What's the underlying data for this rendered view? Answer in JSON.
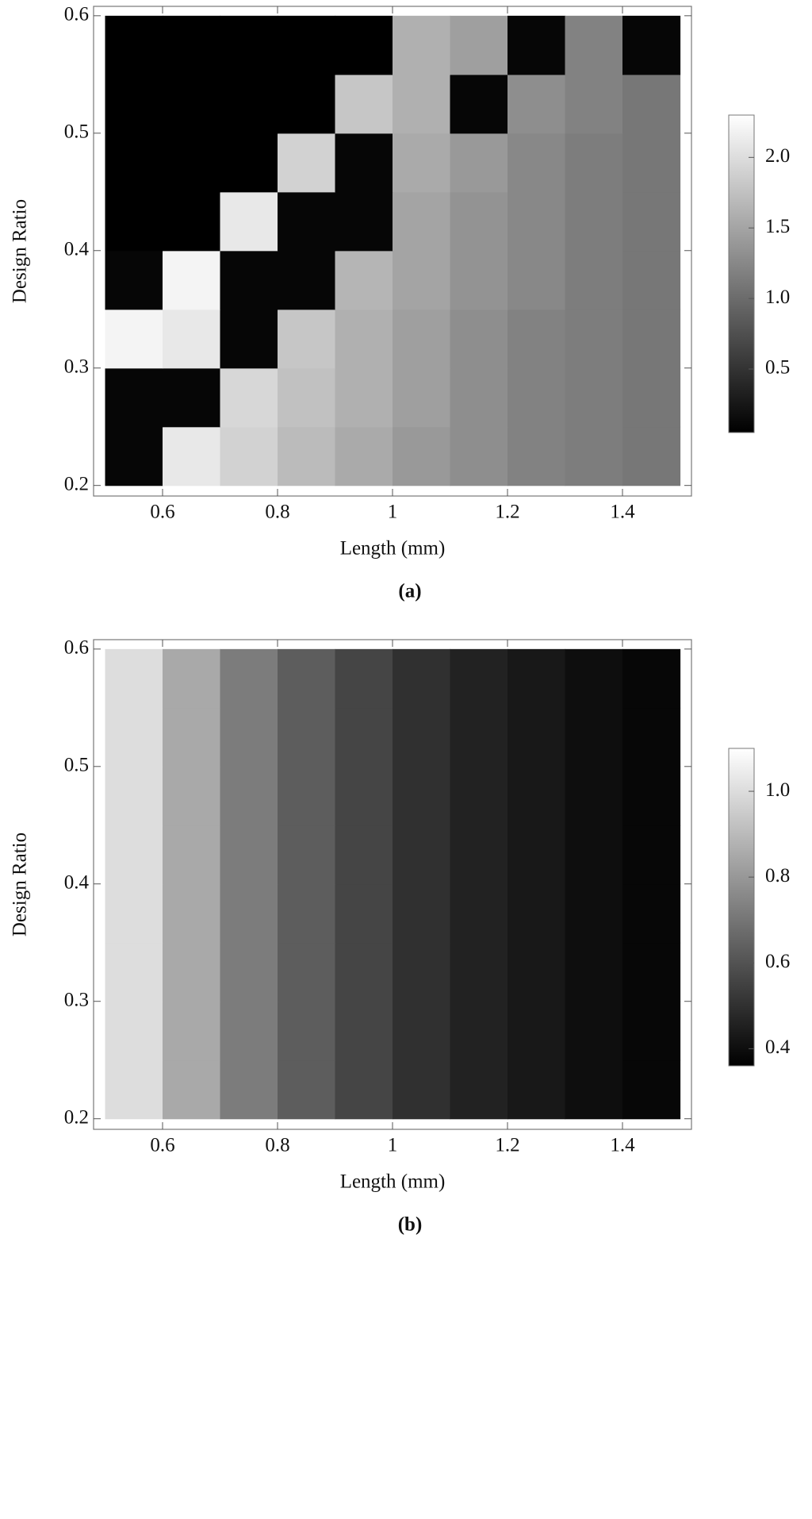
{
  "chart_data": [
    {
      "type": "heatmap",
      "caption": "(a)",
      "x_label": "Length (mm)",
      "y_label": "Design Ratio",
      "x": [
        0.55,
        0.65,
        0.75,
        0.85,
        0.95,
        1.05,
        1.15,
        1.25,
        1.35,
        1.45
      ],
      "y": [
        0.225,
        0.275,
        0.325,
        0.375,
        0.425,
        0.475,
        0.525,
        0.575
      ],
      "z": [
        [
          0.1,
          2.1,
          1.9,
          1.7,
          1.55,
          1.4,
          1.3,
          1.2,
          1.15,
          1.1
        ],
        [
          0.1,
          0.1,
          1.95,
          1.75,
          1.6,
          1.45,
          1.3,
          1.2,
          1.15,
          1.1
        ],
        [
          2.2,
          2.1,
          0.1,
          1.8,
          1.6,
          1.45,
          1.3,
          1.2,
          1.15,
          1.1
        ],
        [
          0.1,
          2.2,
          0.1,
          0.1,
          1.65,
          1.5,
          1.35,
          1.25,
          1.15,
          1.1
        ],
        [
          0.05,
          0.05,
          2.1,
          0.1,
          0.1,
          1.5,
          1.35,
          1.25,
          1.15,
          1.1
        ],
        [
          0.05,
          0.05,
          0.05,
          1.9,
          0.1,
          1.55,
          1.4,
          1.25,
          1.15,
          1.1
        ],
        [
          0.05,
          0.05,
          0.05,
          0.05,
          1.8,
          1.6,
          0.1,
          1.3,
          1.2,
          1.1
        ],
        [
          0.05,
          0.05,
          0.05,
          0.05,
          0.05,
          1.6,
          1.45,
          0.1,
          1.2,
          0.1
        ]
      ],
      "xlim": [
        0.48,
        1.52
      ],
      "ylim": [
        0.191,
        0.608
      ],
      "xticks": [
        0.6,
        0.8,
        1,
        1.2,
        1.4
      ],
      "yticks": [
        0.2,
        0.3,
        0.4,
        0.5,
        0.6
      ],
      "zlim": [
        0.05,
        2.3
      ],
      "zticks": [
        0.5,
        {
          "value": 1,
          "label": "1.0"
        },
        1.5,
        {
          "value": 2,
          "label": "2.0"
        }
      ],
      "colormap": [
        "#000000",
        "#ffffff"
      ]
    },
    {
      "type": "heatmap",
      "caption": "(b)",
      "x_label": "Length (mm)",
      "y_label": "Design Ratio",
      "x": [
        0.55,
        0.65,
        0.75,
        0.85,
        0.95,
        1.05,
        1.15,
        1.25,
        1.35,
        1.45
      ],
      "y": [
        0.225,
        0.275,
        0.325,
        0.375,
        0.425,
        0.475,
        0.525,
        0.575
      ],
      "z": [
        [
          1.0,
          0.85,
          0.72,
          0.63,
          0.56,
          0.5,
          0.46,
          0.43,
          0.4,
          0.38
        ],
        [
          1.0,
          0.85,
          0.72,
          0.63,
          0.56,
          0.5,
          0.46,
          0.43,
          0.4,
          0.38
        ],
        [
          1.0,
          0.85,
          0.72,
          0.63,
          0.56,
          0.5,
          0.46,
          0.43,
          0.4,
          0.38
        ],
        [
          1.0,
          0.85,
          0.72,
          0.63,
          0.56,
          0.5,
          0.46,
          0.43,
          0.4,
          0.38
        ],
        [
          1.0,
          0.85,
          0.72,
          0.63,
          0.56,
          0.5,
          0.46,
          0.43,
          0.4,
          0.38
        ],
        [
          1.0,
          0.85,
          0.72,
          0.63,
          0.56,
          0.5,
          0.46,
          0.43,
          0.4,
          0.38
        ],
        [
          1.0,
          0.85,
          0.72,
          0.63,
          0.56,
          0.5,
          0.46,
          0.43,
          0.4,
          0.38
        ],
        [
          1.0,
          0.85,
          0.72,
          0.63,
          0.56,
          0.5,
          0.46,
          0.43,
          0.4,
          0.38
        ]
      ],
      "xlim": [
        0.48,
        1.52
      ],
      "ylim": [
        0.191,
        0.608
      ],
      "xticks": [
        0.6,
        0.8,
        1,
        1.2,
        1.4
      ],
      "yticks": [
        0.2,
        0.3,
        0.4,
        0.5,
        0.6
      ],
      "zlim": [
        0.36,
        1.1
      ],
      "zticks": [
        0.4,
        0.6,
        0.8,
        {
          "value": 1,
          "label": "1.0"
        }
      ],
      "colormap": [
        "#000000",
        "#ffffff"
      ]
    }
  ]
}
